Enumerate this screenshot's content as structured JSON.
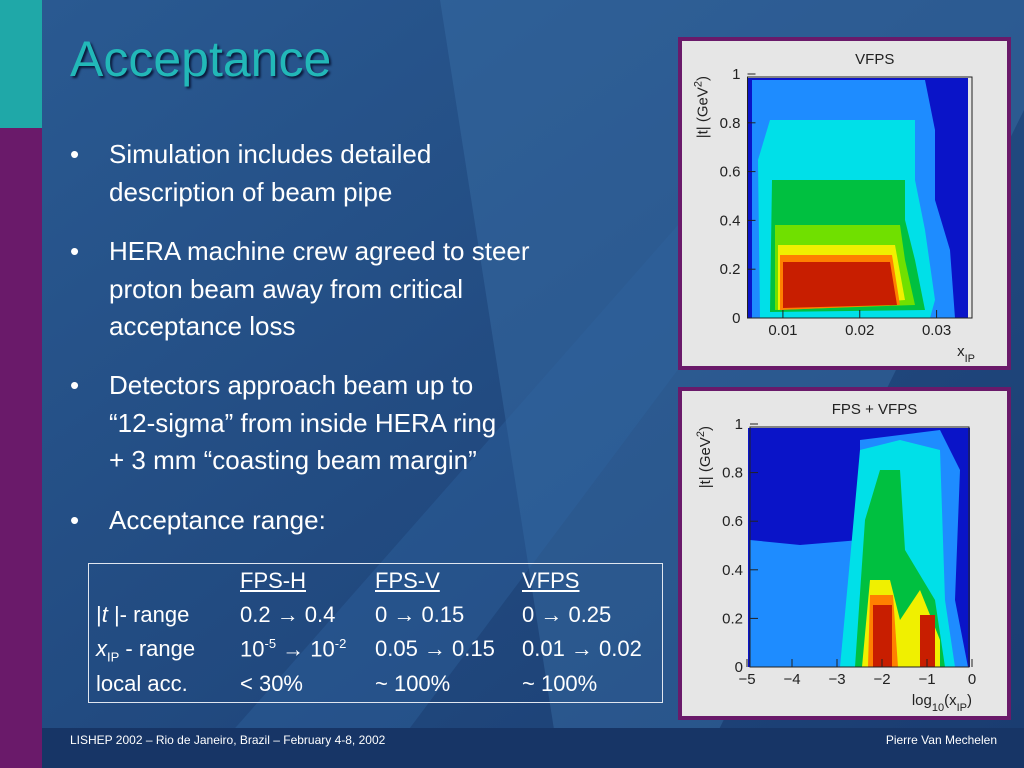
{
  "slide": {
    "title": "Acceptance",
    "bullets": [
      [
        "Simulation includes detailed",
        "description of beam pipe"
      ],
      [
        "HERA machine crew agreed to steer",
        "proton beam away from critical",
        "acceptance loss"
      ],
      [
        "Detectors approach beam up to",
        "“12-sigma” from inside HERA ring",
        "+ 3 mm “coasting beam margin”"
      ],
      [
        "Acceptance range:"
      ]
    ],
    "table": {
      "columns": [
        "FPS-H",
        "FPS-V",
        "VFPS"
      ],
      "rows": [
        {
          "label": [
            {
              "t": "|"
            },
            {
              "t": "t",
              "s": "i"
            },
            {
              "t": " |- range"
            }
          ],
          "cells": [
            "0.2 → 0.4",
            "0 → 0.15",
            "0 → 0.25"
          ]
        },
        {
          "label": [
            {
              "t": "x",
              "s": "i"
            },
            {
              "t": "IP",
              "s": "sub"
            },
            {
              "t": " - range"
            }
          ],
          "cells": [
            [
              {
                "t": "10"
              },
              {
                "t": "-5",
                "s": "sup"
              },
              {
                "t": " → 10"
              },
              {
                "t": "-2",
                "s": "sup"
              }
            ],
            "0.05 → 0.15",
            "0.01 → 0.02"
          ]
        },
        {
          "label": [
            {
              "t": "local acc."
            }
          ],
          "cells": [
            "< 30%",
            "~ 100%",
            "~ 100%"
          ]
        }
      ]
    },
    "plots": [
      {
        "title": "VFPS",
        "ylabel": [
          {
            "t": "|t| (GeV"
          },
          {
            "t": "2",
            "s": "sup"
          },
          {
            "t": ")"
          }
        ],
        "xlabel": [
          {
            "t": "x"
          },
          {
            "t": "IP",
            "s": "sub"
          }
        ],
        "xlim": [
          0.005,
          0.035
        ],
        "ylim": [
          0,
          1
        ],
        "xticks": [
          0.01,
          0.02,
          0.03
        ],
        "yticks": [
          0,
          0.2,
          0.4,
          0.6,
          0.8,
          1
        ]
      },
      {
        "title": "FPS + VFPS",
        "ylabel": [
          {
            "t": "|t| (GeV"
          },
          {
            "t": "2",
            "s": "sup"
          },
          {
            "t": ")"
          }
        ],
        "xlabel": [
          {
            "t": "log"
          },
          {
            "t": "10",
            "s": "sub"
          },
          {
            "t": "(x"
          },
          {
            "t": "IP",
            "s": "sub"
          },
          {
            "t": ")"
          }
        ],
        "xlim": [
          -5,
          0
        ],
        "ylim": [
          0,
          1
        ],
        "xticks": [
          {
            "value": -5,
            "label": "−5"
          },
          {
            "value": -4,
            "label": "−4"
          },
          {
            "value": -3,
            "label": "−3"
          },
          {
            "value": -2,
            "label": "−2"
          },
          {
            "value": -1,
            "label": "−1"
          },
          0
        ],
        "yticks": [
          0,
          0.2,
          0.4,
          0.6,
          0.8,
          1
        ]
      }
    ],
    "footer": {
      "left": "LISHEP 2002 – Rio de Janeiro, Brazil – February 4-8, 2002",
      "right": "Pierre Van Mechelen"
    }
  }
}
